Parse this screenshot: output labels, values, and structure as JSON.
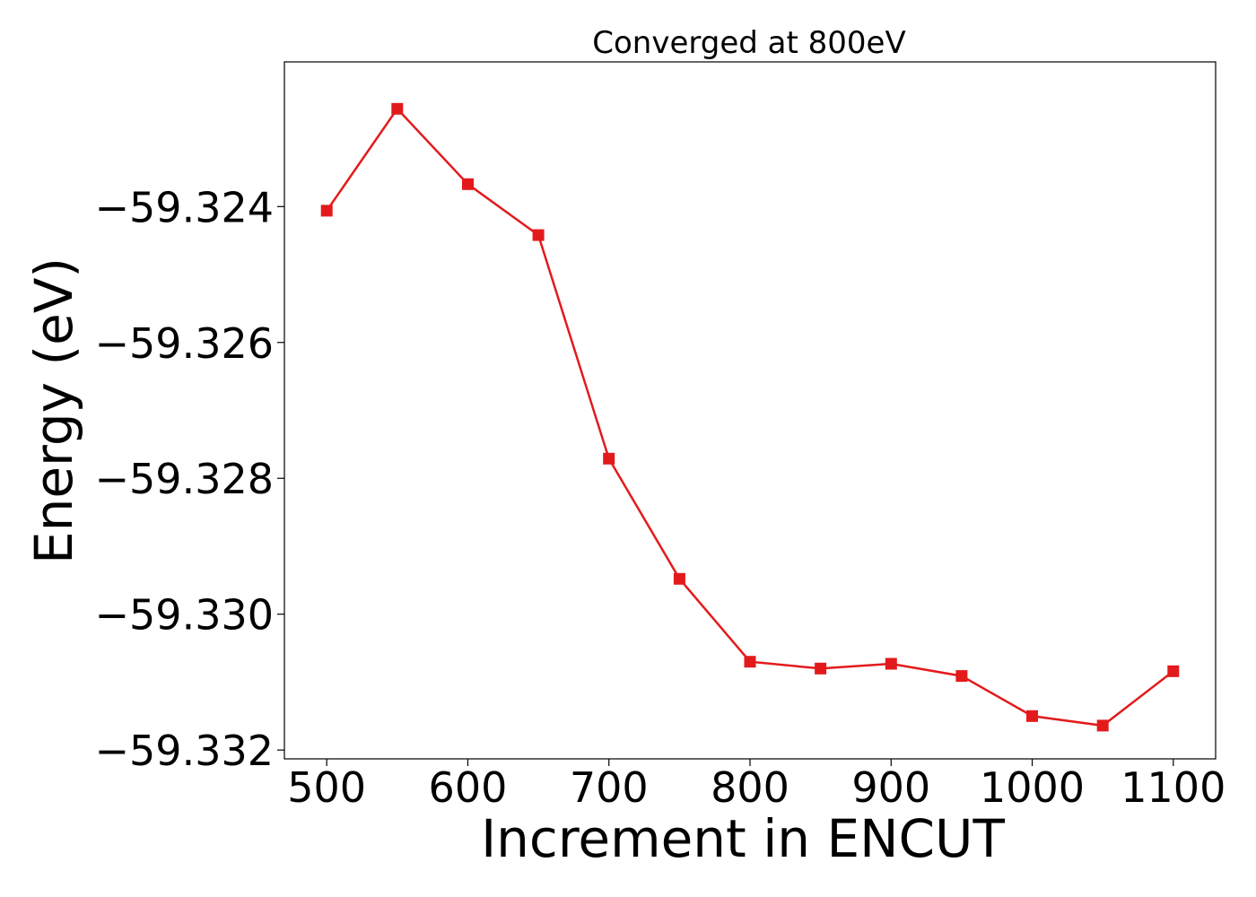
{
  "chart_data": {
    "type": "line",
    "title": "Converged at 800eV",
    "xlabel": "Increment in ENCUT",
    "ylabel": "Energy (eV)",
    "xlim": [
      470,
      1130
    ],
    "ylim": [
      -59.33213,
      -59.32187
    ],
    "xticks": [
      500,
      600,
      700,
      800,
      900,
      1000,
      1100
    ],
    "xtick_labels": [
      "500",
      "600",
      "700",
      "800",
      "900",
      "1000",
      "1100"
    ],
    "yticks": [
      -59.324,
      -59.326,
      -59.328,
      -59.33,
      -59.332
    ],
    "ytick_labels": [
      "−59.324",
      "−59.326",
      "−59.328",
      "−59.330",
      "−59.332"
    ],
    "grid": false,
    "legend": "none",
    "series": [
      {
        "color": "#e31a1c",
        "marker": "square",
        "x": [
          500,
          550,
          600,
          650,
          700,
          750,
          800,
          850,
          900,
          950,
          1000,
          1050,
          1100
        ],
        "y": [
          -59.32406,
          -59.32256,
          -59.32367,
          -59.32442,
          -59.32771,
          -59.32948,
          -59.3307,
          -59.3308,
          -59.33073,
          -59.33091,
          -59.3315,
          -59.33164,
          -59.33084
        ]
      }
    ]
  }
}
